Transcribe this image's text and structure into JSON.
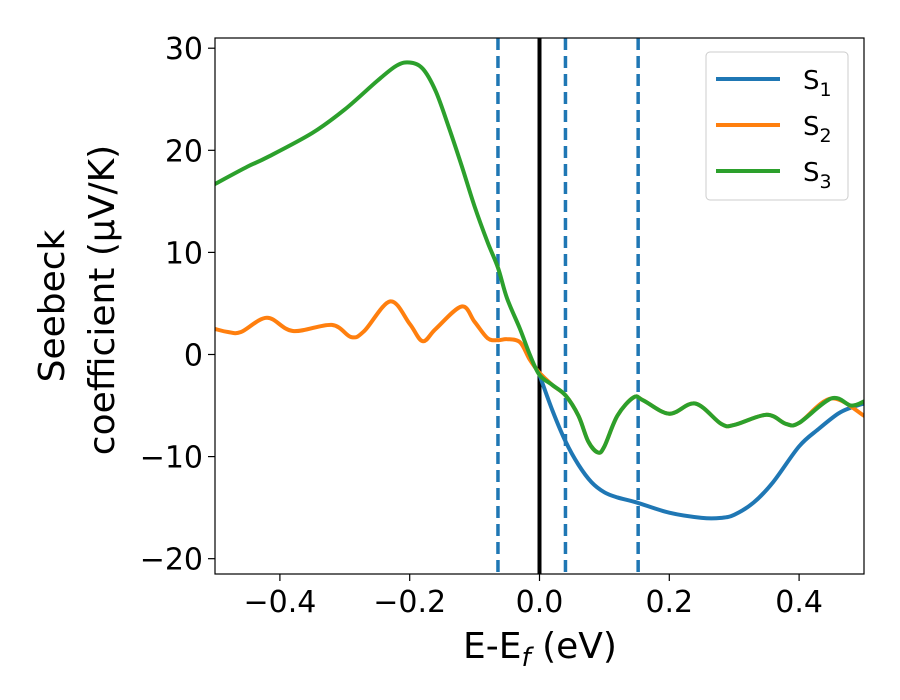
{
  "chart_data": {
    "type": "line",
    "xlabel": {
      "base": "E-E",
      "sub": "f",
      "tail": " (eV)"
    },
    "ylabel": {
      "line1": "Seebeck",
      "line2": "coefficient  (μV/K)"
    },
    "xlim": [
      -0.5,
      0.5
    ],
    "ylim": [
      -21.5,
      31
    ],
    "xticks": [
      -0.4,
      -0.2,
      0.0,
      0.2,
      0.4
    ],
    "xtick_labels": [
      "−0.4",
      "−0.2",
      "0.0",
      "0.2",
      "0.4"
    ],
    "yticks": [
      -20,
      -10,
      0,
      10,
      20,
      30
    ],
    "ytick_labels": [
      "−20",
      "−10",
      "0",
      "10",
      "20",
      "30"
    ],
    "grid": false,
    "legend_position": "top-right",
    "colors": {
      "S1": "#1f77b4",
      "S2": "#ff7f0e",
      "S3": "#2ca02c",
      "vline": "#000000",
      "dashed": "#1f77b4"
    },
    "vertical_lines": [
      {
        "x": 0.0,
        "style": "solid",
        "color": "#000000"
      },
      {
        "x": -0.064,
        "style": "dashed",
        "color": "#1f77b4"
      },
      {
        "x": 0.04,
        "style": "dashed",
        "color": "#1f77b4"
      },
      {
        "x": 0.152,
        "style": "dashed",
        "color": "#1f77b4"
      }
    ],
    "series": [
      {
        "name": "S",
        "sub": "1",
        "color": "#1f77b4",
        "x": [
          0.0,
          0.02,
          0.04,
          0.06,
          0.08,
          0.1,
          0.12,
          0.15,
          0.2,
          0.25,
          0.28,
          0.3,
          0.33,
          0.36,
          0.4,
          0.43,
          0.46,
          0.48,
          0.5
        ],
        "y": [
          -2.0,
          -5.5,
          -8.5,
          -10.8,
          -12.5,
          -13.5,
          -14.0,
          -14.5,
          -15.5,
          -16.0,
          -16.0,
          -15.7,
          -14.5,
          -12.5,
          -9.0,
          -7.3,
          -5.8,
          -5.2,
          -4.8
        ]
      },
      {
        "name": "S",
        "sub": "2",
        "color": "#ff7f0e",
        "x": [
          -0.5,
          -0.48,
          -0.46,
          -0.42,
          -0.38,
          -0.32,
          -0.29,
          -0.27,
          -0.23,
          -0.2,
          -0.18,
          -0.16,
          -0.12,
          -0.1,
          -0.08,
          -0.064,
          -0.05,
          -0.03,
          -0.015,
          0.0,
          0.02,
          0.04,
          0.06,
          0.075,
          0.09,
          0.1,
          0.12,
          0.145,
          0.16,
          0.2,
          0.24,
          0.28,
          0.3,
          0.35,
          0.38,
          0.4,
          0.45,
          0.5
        ],
        "y": [
          2.5,
          2.2,
          2.2,
          3.6,
          2.3,
          2.9,
          1.7,
          2.3,
          5.2,
          3.0,
          1.3,
          2.5,
          4.7,
          3.2,
          1.6,
          1.4,
          1.5,
          1.2,
          -0.5,
          -1.8,
          -3.0,
          -4.0,
          -6.0,
          -8.5,
          -9.6,
          -9.0,
          -6.0,
          -4.2,
          -4.5,
          -5.8,
          -4.8,
          -6.8,
          -6.9,
          -5.9,
          -6.8,
          -6.7,
          -4.3,
          -6.0
        ]
      },
      {
        "name": "S",
        "sub": "3",
        "color": "#2ca02c",
        "x": [
          -0.5,
          -0.45,
          -0.42,
          -0.35,
          -0.3,
          -0.25,
          -0.22,
          -0.2,
          -0.18,
          -0.16,
          -0.14,
          -0.12,
          -0.1,
          -0.08,
          -0.064,
          -0.05,
          -0.03,
          -0.015,
          0.0,
          0.02,
          0.04,
          0.06,
          0.075,
          0.09,
          0.1,
          0.12,
          0.145,
          0.16,
          0.2,
          0.24,
          0.28,
          0.3,
          0.35,
          0.38,
          0.4,
          0.45,
          0.48,
          0.5
        ],
        "y": [
          16.7,
          18.4,
          19.3,
          21.7,
          24.0,
          26.8,
          28.3,
          28.6,
          28.0,
          25.8,
          22.3,
          18.5,
          14.5,
          11.0,
          8.5,
          5.5,
          2.5,
          0.0,
          -2.0,
          -3.0,
          -4.0,
          -6.0,
          -8.5,
          -9.6,
          -9.0,
          -6.0,
          -4.2,
          -4.5,
          -5.8,
          -4.8,
          -6.8,
          -6.9,
          -5.9,
          -6.8,
          -6.7,
          -4.3,
          -5.0,
          -4.6
        ]
      }
    ]
  }
}
